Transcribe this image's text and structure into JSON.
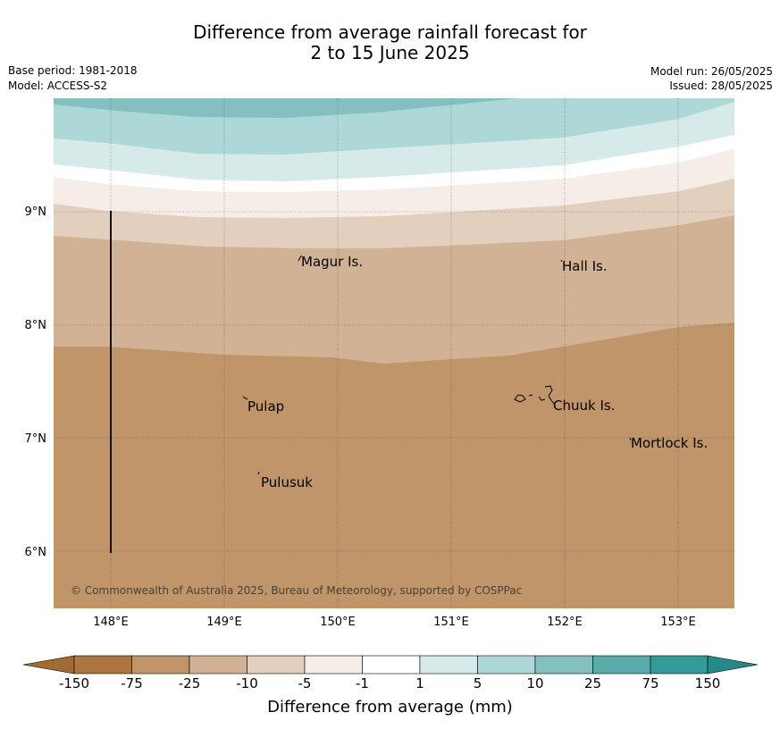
{
  "title": {
    "line1": "Difference from average rainfall forecast for",
    "line2": "2 to 15 June 2025"
  },
  "meta": {
    "base_period": "Base period: 1981-2018",
    "model": "Model: ACCESS-S2",
    "model_run": "Model run: 26/05/2025",
    "issued": "Issued: 28/05/2025"
  },
  "map": {
    "lon_labels": [
      "148°E",
      "149°E",
      "150°E",
      "151°E",
      "152°E",
      "153°E"
    ],
    "lat_labels": [
      "9°N",
      "8°N",
      "7°N",
      "6°N"
    ],
    "places": [
      "Magur Is.",
      "Hall Is.",
      "Pulap",
      "Chuuk Is.",
      "Mortlock Is.",
      "Pulusuk"
    ],
    "copyright": "© Commonwealth of Australia 2025, Bureau of Meteorology, supported by COSPPac"
  },
  "colorbar": {
    "title": "Difference from average (mm)",
    "ticks": [
      "-150",
      "-75",
      "-25",
      "-10",
      "-5",
      "-1",
      "1",
      "5",
      "10",
      "25",
      "75",
      "150"
    ],
    "colors": {
      "below_-150": "#a26a35",
      "-150_-75": "#ad7540",
      "-75_-25": "#c0956a",
      "-25_-10": "#d1b295",
      "-10_-5": "#e3cfbe",
      "-5_-1": "#f4ede8",
      "-1_1": "#ffffff",
      "1_5": "#d7eaea",
      "5_10": "#add8d7",
      "10_25": "#83c0bf",
      "25_75": "#59acab",
      "75_150": "#339a98",
      "above_150": "#238a88"
    }
  }
}
